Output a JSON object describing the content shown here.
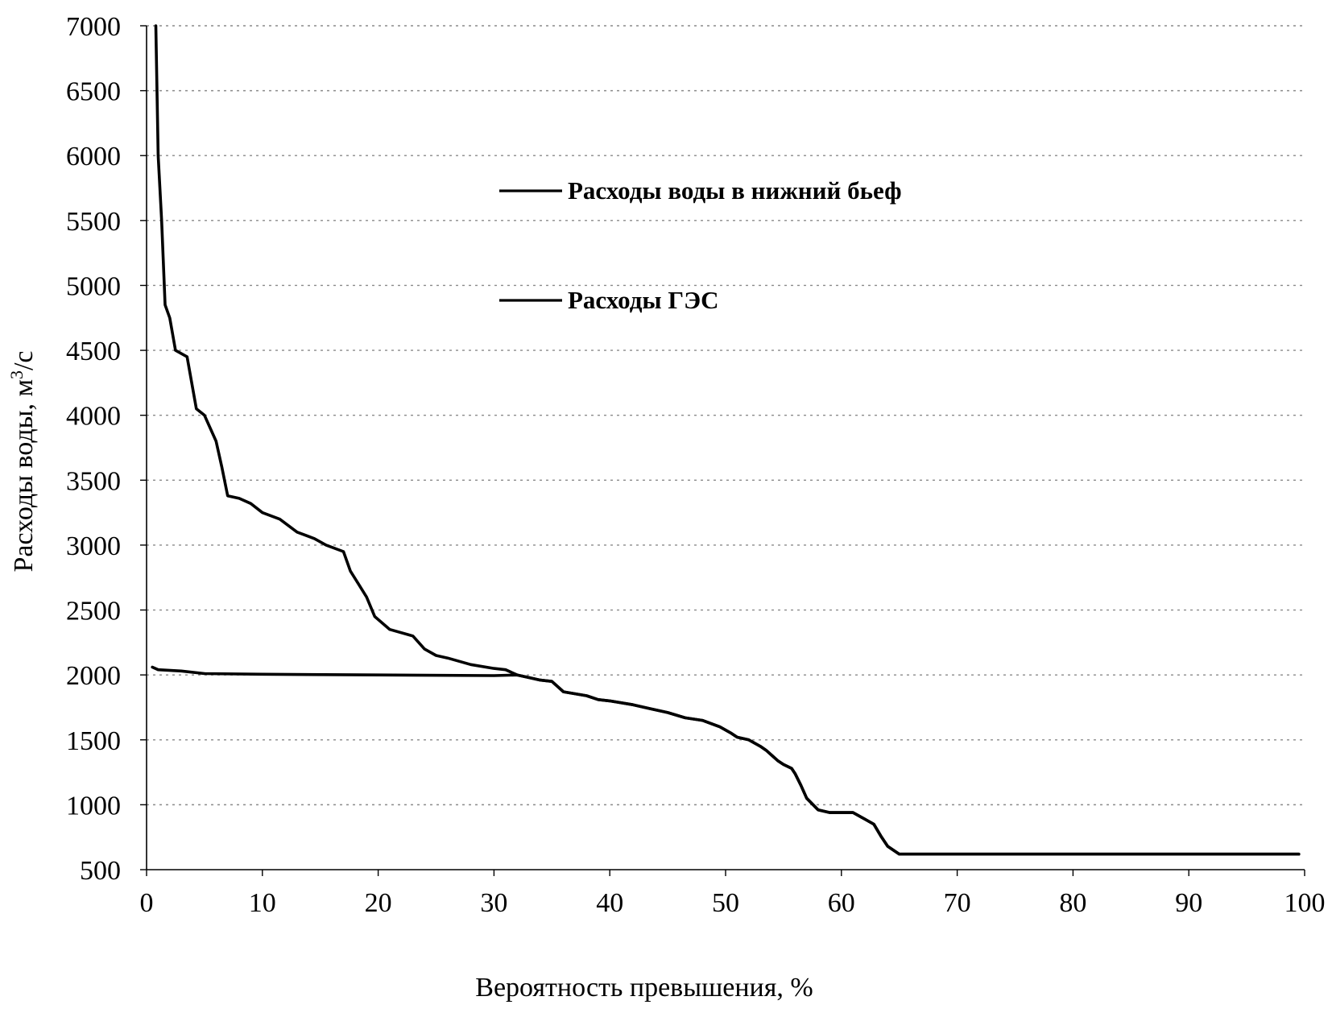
{
  "chart_data": {
    "type": "line",
    "xlabel": "Вероятность превышения,  %",
    "ylabel": "Расходы воды, м",
    "ylabel_sup": "3",
    "ylabel_tail": "/с",
    "xlim": [
      0,
      100
    ],
    "ylim": [
      500,
      7000
    ],
    "x_ticks": [
      0,
      10,
      20,
      30,
      40,
      50,
      60,
      70,
      80,
      90,
      100
    ],
    "y_ticks": [
      500,
      1000,
      1500,
      2000,
      2500,
      3000,
      3500,
      4000,
      4500,
      5000,
      5500,
      6000,
      6500,
      7000
    ],
    "x_tick_labels": [
      "0",
      "10",
      "20",
      "30",
      "40",
      "50",
      "60",
      "70",
      "80",
      "90",
      "100"
    ],
    "y_tick_labels": [
      "500",
      "1000",
      "1500",
      "2000",
      "2500",
      "3000",
      "3500",
      "4000",
      "4500",
      "5000",
      "5500",
      "6000",
      "6500",
      "7000"
    ],
    "grid": true,
    "legend_position": "upper-middle",
    "series": [
      {
        "name": "Расходы воды в нижний бьеф",
        "color": "#000000",
        "points": [
          [
            0.8,
            7000
          ],
          [
            1.0,
            6000
          ],
          [
            1.3,
            5500
          ],
          [
            1.6,
            4850
          ],
          [
            2.0,
            4750
          ],
          [
            2.5,
            4500
          ],
          [
            3.5,
            4450
          ],
          [
            4.3,
            4050
          ],
          [
            5.0,
            4000
          ],
          [
            6.0,
            3800
          ],
          [
            6.5,
            3600
          ],
          [
            7.0,
            3380
          ],
          [
            8.0,
            3360
          ],
          [
            9.0,
            3320
          ],
          [
            10.0,
            3250
          ],
          [
            11.5,
            3200
          ],
          [
            13.0,
            3100
          ],
          [
            14.5,
            3050
          ],
          [
            15.5,
            3000
          ],
          [
            17.0,
            2950
          ],
          [
            17.6,
            2800
          ],
          [
            18.3,
            2700
          ],
          [
            19.0,
            2600
          ],
          [
            19.7,
            2450
          ],
          [
            21.0,
            2350
          ],
          [
            23.0,
            2300
          ],
          [
            24.0,
            2200
          ],
          [
            25.0,
            2150
          ],
          [
            26.0,
            2130
          ],
          [
            28.0,
            2080
          ],
          [
            30.0,
            2050
          ],
          [
            31.0,
            2040
          ],
          [
            32.0,
            2000
          ],
          [
            33.0,
            1980
          ],
          [
            34.0,
            1960
          ],
          [
            35.0,
            1950
          ],
          [
            36.0,
            1870
          ],
          [
            38.0,
            1840
          ],
          [
            39.0,
            1810
          ],
          [
            40.0,
            1800
          ],
          [
            42.0,
            1770
          ],
          [
            43.5,
            1740
          ],
          [
            45.0,
            1710
          ],
          [
            46.5,
            1670
          ],
          [
            48.0,
            1650
          ],
          [
            49.5,
            1600
          ],
          [
            50.5,
            1550
          ],
          [
            51.0,
            1520
          ],
          [
            52.0,
            1500
          ],
          [
            53.0,
            1450
          ],
          [
            53.5,
            1420
          ],
          [
            54.0,
            1380
          ],
          [
            54.5,
            1340
          ],
          [
            55.0,
            1310
          ],
          [
            55.7,
            1280
          ],
          [
            56.0,
            1240
          ],
          [
            56.5,
            1150
          ],
          [
            57.0,
            1050
          ],
          [
            58.0,
            960
          ],
          [
            59.0,
            940
          ],
          [
            61.0,
            940
          ],
          [
            62.0,
            890
          ],
          [
            62.8,
            850
          ],
          [
            63.4,
            760
          ],
          [
            64.0,
            680
          ],
          [
            65.0,
            620
          ],
          [
            70.0,
            620
          ],
          [
            80.0,
            620
          ],
          [
            90.0,
            620
          ],
          [
            99.5,
            620
          ]
        ]
      },
      {
        "name": "Расходы ГЭС",
        "color": "#000000",
        "points": [
          [
            0.5,
            2060
          ],
          [
            1.0,
            2040
          ],
          [
            3.0,
            2030
          ],
          [
            5.0,
            2010
          ],
          [
            10.0,
            2005
          ],
          [
            20.0,
            2000
          ],
          [
            30.0,
            1995
          ],
          [
            32.0,
            2000
          ],
          [
            33.0,
            1980
          ],
          [
            34.0,
            1960
          ],
          [
            35.0,
            1950
          ],
          [
            36.0,
            1870
          ],
          [
            38.0,
            1840
          ],
          [
            39.0,
            1810
          ],
          [
            40.0,
            1800
          ],
          [
            42.0,
            1770
          ],
          [
            43.5,
            1740
          ],
          [
            45.0,
            1710
          ],
          [
            46.5,
            1670
          ],
          [
            48.0,
            1650
          ],
          [
            49.5,
            1600
          ],
          [
            50.5,
            1550
          ],
          [
            51.0,
            1520
          ],
          [
            52.0,
            1500
          ],
          [
            53.0,
            1450
          ],
          [
            53.5,
            1420
          ],
          [
            54.0,
            1380
          ],
          [
            54.5,
            1340
          ],
          [
            55.0,
            1310
          ],
          [
            55.7,
            1280
          ],
          [
            56.0,
            1240
          ],
          [
            56.5,
            1150
          ],
          [
            57.0,
            1050
          ],
          [
            58.0,
            960
          ],
          [
            59.0,
            940
          ],
          [
            61.0,
            940
          ],
          [
            62.0,
            890
          ],
          [
            62.8,
            850
          ],
          [
            63.4,
            760
          ],
          [
            64.0,
            680
          ],
          [
            65.0,
            620
          ],
          [
            70.0,
            620
          ],
          [
            80.0,
            620
          ],
          [
            90.0,
            620
          ],
          [
            99.5,
            620
          ]
        ]
      }
    ]
  }
}
